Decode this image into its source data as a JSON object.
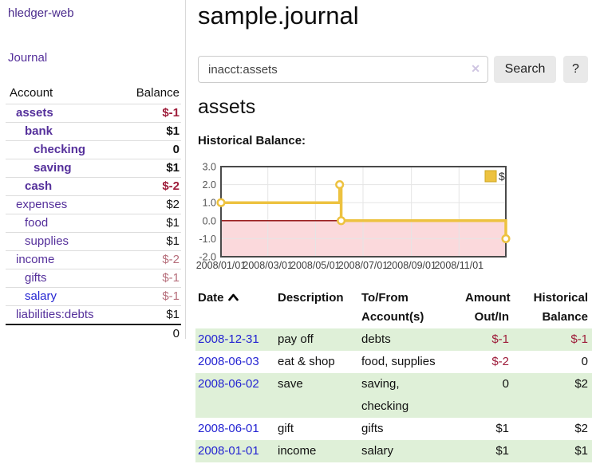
{
  "sidebar": {
    "app_title": "hledger-web",
    "journal_link": "Journal",
    "accounts": {
      "col_account": "Account",
      "col_balance": "Balance",
      "rows": [
        {
          "name": "assets",
          "balance": "$-1",
          "level": 1,
          "bold": true,
          "neg": "strong"
        },
        {
          "name": "bank",
          "balance": "$1",
          "level": 2,
          "bold": true,
          "neg": "none"
        },
        {
          "name": "checking",
          "balance": "0",
          "level": 3,
          "bold": true,
          "neg": "none"
        },
        {
          "name": "saving",
          "balance": "$1",
          "level": 3,
          "bold": true,
          "neg": "none"
        },
        {
          "name": "cash",
          "balance": "$-2",
          "level": 2,
          "bold": true,
          "neg": "strong"
        },
        {
          "name": "expenses",
          "balance": "$2",
          "level": 1,
          "bold": false,
          "neg": "none"
        },
        {
          "name": "food",
          "balance": "$1",
          "level": 2,
          "bold": false,
          "neg": "none"
        },
        {
          "name": "supplies",
          "balance": "$1",
          "level": 2,
          "bold": false,
          "neg": "none"
        },
        {
          "name": "income",
          "balance": "$-2",
          "level": 1,
          "bold": false,
          "neg": "muted"
        },
        {
          "name": "gifts",
          "balance": "$-1",
          "level": 2,
          "bold": false,
          "neg": "muted"
        },
        {
          "name": "salary",
          "balance": "$-1",
          "level": 2,
          "bold": false,
          "neg": "muted",
          "link_color": "blue"
        },
        {
          "name": "liabilities:debts",
          "balance": "$1",
          "level": 1,
          "bold": false,
          "neg": "none"
        }
      ],
      "total": "0"
    }
  },
  "header": {
    "title": "sample.journal"
  },
  "search": {
    "value": "inacct:assets",
    "clear_icon": "✕",
    "button_label": "Search",
    "help_label": "?"
  },
  "account_page": {
    "heading": "assets",
    "chart_label": "Historical Balance:"
  },
  "chart_data": {
    "type": "line",
    "step": true,
    "title": "Historical Balance:",
    "series": [
      {
        "name": "$",
        "color": "#EDC240",
        "points": [
          {
            "x": "2008-01-01",
            "y": 1
          },
          {
            "x": "2008-06-01",
            "y": 2
          },
          {
            "x": "2008-06-03",
            "y": 0
          },
          {
            "x": "2008-12-31",
            "y": -1
          }
        ]
      }
    ],
    "xlim": [
      "2008-01-01",
      "2008-12-31"
    ],
    "ylim": [
      -2,
      3
    ],
    "y_ticks": [
      "3.0",
      "2.0",
      "1.0",
      "0.0",
      "-1.0",
      "-2.0"
    ],
    "x_ticks": [
      "2008/01/01",
      "2008/03/01",
      "2008/05/01",
      "2008/07/01",
      "2008/09/01",
      "2008/11/01"
    ],
    "legend": {
      "label": "$",
      "position": "top-right"
    },
    "grid": true,
    "negative_fill": "#fbd9dc",
    "zero_line_color": "#8b0000",
    "border_color": "#4a4a4a"
  },
  "register": {
    "headers": {
      "date": "Date",
      "description": "Description",
      "accounts": "To/From Account(s)",
      "amount": "Amount Out/In",
      "balance": "Historical Balance"
    },
    "sort": "ascending",
    "rows": [
      {
        "date": "2008-12-31",
        "description": "pay off",
        "accounts": "debts",
        "amount": "$-1",
        "balance": "$-1",
        "amount_neg": true,
        "balance_neg": true
      },
      {
        "date": "2008-06-03",
        "description": "eat & shop",
        "accounts": "food, supplies",
        "amount": "$-2",
        "balance": "0",
        "amount_neg": true,
        "balance_neg": false
      },
      {
        "date": "2008-06-02",
        "description": "save",
        "accounts": "saving,\nchecking",
        "amount": "0",
        "balance": "$2",
        "amount_neg": false,
        "balance_neg": false
      },
      {
        "date": "2008-06-01",
        "description": "gift",
        "accounts": "gifts",
        "amount": "$1",
        "balance": "$2",
        "amount_neg": false,
        "balance_neg": false
      },
      {
        "date": "2008-01-01",
        "description": "income",
        "accounts": "salary",
        "amount": "$1",
        "balance": "$1",
        "amount_neg": false,
        "balance_neg": false
      }
    ]
  },
  "colors": {
    "link_purple": "#55309b",
    "link_blue": "#2525d2",
    "negative_strong": "#9e1c3a",
    "negative_muted": "#b66e7b",
    "row_green": "#dff0d8",
    "series_gold": "#EDC240"
  }
}
